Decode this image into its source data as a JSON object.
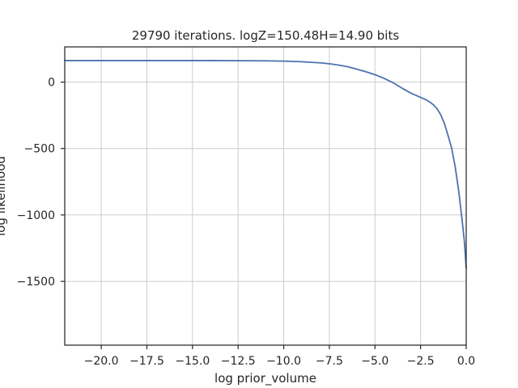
{
  "chart_data": {
    "type": "line",
    "title": "29790 iterations. logZ=150.48H=14.90 bits",
    "xlabel": "log prior_volume",
    "ylabel": "log likelihood",
    "xlim": [
      -22.0,
      0.0
    ],
    "ylim": [
      -1980,
      265
    ],
    "grid": true,
    "x_ticks": [
      -20.0,
      -17.5,
      -15.0,
      -12.5,
      -10.0,
      -7.5,
      -5.0,
      -2.5,
      0.0
    ],
    "x_tick_labels": [
      "−20.0",
      "−17.5",
      "−15.0",
      "−12.5",
      "−10.0",
      "−7.5",
      "−5.0",
      "−2.5",
      "0.0"
    ],
    "y_ticks": [
      0,
      -500,
      -1000,
      -1500
    ],
    "y_tick_labels": [
      "0",
      "−500",
      "−1000",
      "−1500"
    ],
    "line_color": "#4c72b0",
    "grid_color": "#cccccc",
    "series": [
      {
        "x": [
          -22.0,
          -20.0,
          -18.0,
          -16.0,
          -14.0,
          -12.0,
          -11.0,
          -10.0,
          -9.0,
          -8.0,
          -7.5,
          -7.0,
          -6.5,
          -6.0,
          -5.5,
          -5.0,
          -4.5,
          -4.0,
          -3.5,
          -3.0,
          -2.5,
          -2.2,
          -2.0,
          -1.8,
          -1.6,
          -1.4,
          -1.2,
          -1.0,
          -0.8,
          -0.6,
          -0.4,
          -0.3,
          -0.2,
          -0.1,
          -0.05,
          0.0
        ],
        "y": [
          162,
          162,
          162,
          162,
          162,
          161,
          160,
          158,
          153,
          145,
          138,
          128,
          116,
          98,
          78,
          56,
          28,
          -5,
          -47,
          -85,
          -115,
          -133,
          -150,
          -170,
          -200,
          -245,
          -310,
          -400,
          -495,
          -640,
          -830,
          -950,
          -1070,
          -1200,
          -1300,
          -1400
        ]
      }
    ]
  }
}
